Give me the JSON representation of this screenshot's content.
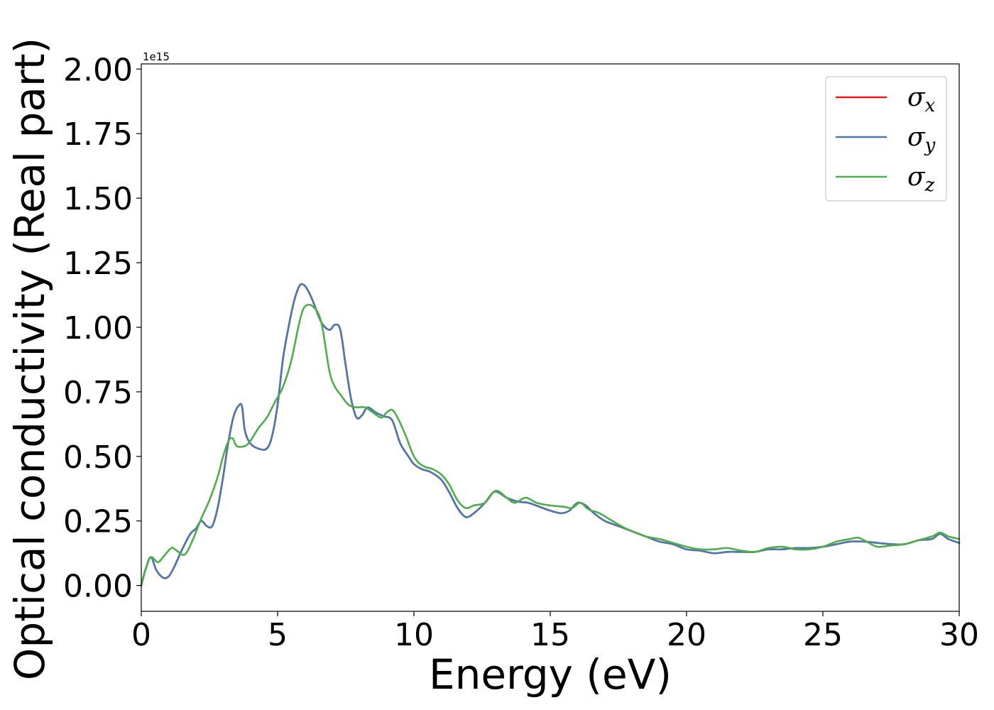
{
  "chart_data": {
    "type": "line",
    "xlabel": "Energy (eV)",
    "ylabel": "Optical conductivity (Real part)",
    "y_offset_label": "1e15",
    "xlim": [
      0,
      30
    ],
    "ylim": [
      -0.1,
      2.02
    ],
    "xticks": [
      0,
      5,
      10,
      15,
      20,
      25,
      30
    ],
    "xtick_labels": [
      "0",
      "5",
      "10",
      "15",
      "20",
      "25",
      "30"
    ],
    "yticks": [
      0.0,
      0.25,
      0.5,
      0.75,
      1.0,
      1.25,
      1.5,
      1.75,
      2.0
    ],
    "ytick_labels": [
      "0.00",
      "0.25",
      "0.50",
      "0.75",
      "1.00",
      "1.25",
      "1.50",
      "1.75",
      "2.00"
    ],
    "grid": false,
    "legend_position": "top-right",
    "series": [
      {
        "name": "σx",
        "legend_base": "σ",
        "legend_sub": "x",
        "color": "#e41a1c",
        "x": [
          0,
          0.15,
          0.35,
          0.55,
          0.8,
          1.0,
          1.2,
          1.5,
          1.8,
          2.0,
          2.2,
          2.4,
          2.6,
          2.8,
          3.0,
          3.2,
          3.4,
          3.6,
          3.7,
          3.8,
          4.0,
          4.3,
          4.6,
          4.8,
          5.0,
          5.2,
          5.4,
          5.6,
          5.8,
          5.95,
          6.1,
          6.3,
          6.6,
          6.9,
          7.1,
          7.3,
          7.5,
          7.7,
          7.9,
          8.1,
          8.3,
          8.6,
          8.9,
          9.2,
          9.5,
          9.8,
          10.0,
          10.3,
          10.6,
          11.0,
          11.3,
          11.6,
          11.9,
          12.2,
          12.6,
          12.9,
          13.1,
          13.4,
          13.8,
          14.2,
          14.6,
          15.0,
          15.4,
          15.7,
          16.0,
          16.3,
          16.6,
          17.0,
          17.5,
          18.0,
          18.5,
          19.0,
          19.5,
          20.0,
          20.5,
          21.0,
          21.5,
          22.0,
          22.5,
          23.0,
          23.5,
          24.0,
          24.5,
          25.0,
          25.5,
          26.0,
          26.5,
          27.0,
          27.5,
          28.0,
          28.5,
          29.0,
          29.3,
          29.6,
          30.0
        ],
        "y": [
          0.0,
          0.06,
          0.11,
          0.06,
          0.03,
          0.035,
          0.07,
          0.14,
          0.2,
          0.22,
          0.25,
          0.23,
          0.23,
          0.3,
          0.42,
          0.56,
          0.66,
          0.7,
          0.69,
          0.6,
          0.55,
          0.53,
          0.53,
          0.58,
          0.7,
          0.88,
          1.0,
          1.1,
          1.16,
          1.165,
          1.145,
          1.1,
          1.02,
          0.99,
          1.01,
          0.99,
          0.85,
          0.72,
          0.65,
          0.66,
          0.69,
          0.67,
          0.655,
          0.64,
          0.55,
          0.5,
          0.47,
          0.45,
          0.44,
          0.41,
          0.36,
          0.3,
          0.265,
          0.28,
          0.32,
          0.36,
          0.36,
          0.34,
          0.325,
          0.32,
          0.305,
          0.29,
          0.28,
          0.29,
          0.32,
          0.31,
          0.28,
          0.25,
          0.23,
          0.21,
          0.19,
          0.17,
          0.16,
          0.14,
          0.135,
          0.125,
          0.13,
          0.13,
          0.13,
          0.14,
          0.14,
          0.145,
          0.145,
          0.15,
          0.16,
          0.17,
          0.17,
          0.165,
          0.16,
          0.16,
          0.175,
          0.18,
          0.2,
          0.18,
          0.165
        ]
      },
      {
        "name": "σy",
        "legend_base": "σ",
        "legend_sub": "y",
        "color": "#4a78b0",
        "x": [
          0,
          0.15,
          0.35,
          0.55,
          0.8,
          1.0,
          1.2,
          1.5,
          1.8,
          2.0,
          2.2,
          2.4,
          2.6,
          2.8,
          3.0,
          3.2,
          3.4,
          3.6,
          3.7,
          3.8,
          4.0,
          4.3,
          4.6,
          4.8,
          5.0,
          5.2,
          5.4,
          5.6,
          5.8,
          5.95,
          6.1,
          6.3,
          6.6,
          6.9,
          7.1,
          7.3,
          7.5,
          7.7,
          7.9,
          8.1,
          8.3,
          8.6,
          8.9,
          9.2,
          9.5,
          9.8,
          10.0,
          10.3,
          10.6,
          11.0,
          11.3,
          11.6,
          11.9,
          12.2,
          12.6,
          12.9,
          13.1,
          13.4,
          13.8,
          14.2,
          14.6,
          15.0,
          15.4,
          15.7,
          16.0,
          16.3,
          16.6,
          17.0,
          17.5,
          18.0,
          18.5,
          19.0,
          19.5,
          20.0,
          20.5,
          21.0,
          21.5,
          22.0,
          22.5,
          23.0,
          23.5,
          24.0,
          24.5,
          25.0,
          25.5,
          26.0,
          26.5,
          27.0,
          27.5,
          28.0,
          28.5,
          29.0,
          29.3,
          29.6,
          30.0
        ],
        "y": [
          0.0,
          0.06,
          0.11,
          0.06,
          0.03,
          0.035,
          0.07,
          0.14,
          0.2,
          0.22,
          0.25,
          0.23,
          0.23,
          0.3,
          0.42,
          0.56,
          0.66,
          0.7,
          0.69,
          0.6,
          0.55,
          0.53,
          0.53,
          0.58,
          0.7,
          0.88,
          1.0,
          1.1,
          1.16,
          1.165,
          1.145,
          1.1,
          1.02,
          0.99,
          1.01,
          0.99,
          0.85,
          0.72,
          0.65,
          0.66,
          0.69,
          0.67,
          0.655,
          0.64,
          0.55,
          0.5,
          0.47,
          0.45,
          0.44,
          0.41,
          0.36,
          0.3,
          0.265,
          0.28,
          0.32,
          0.36,
          0.36,
          0.34,
          0.325,
          0.32,
          0.305,
          0.29,
          0.28,
          0.29,
          0.32,
          0.31,
          0.28,
          0.25,
          0.23,
          0.21,
          0.19,
          0.17,
          0.16,
          0.14,
          0.135,
          0.125,
          0.13,
          0.13,
          0.13,
          0.14,
          0.14,
          0.145,
          0.145,
          0.15,
          0.16,
          0.17,
          0.17,
          0.165,
          0.16,
          0.16,
          0.175,
          0.18,
          0.2,
          0.18,
          0.165
        ]
      },
      {
        "name": "σz",
        "legend_base": "σ",
        "legend_sub": "z",
        "color": "#4daf4a",
        "x": [
          0,
          0.15,
          0.35,
          0.6,
          0.8,
          1.1,
          1.3,
          1.6,
          1.9,
          2.2,
          2.5,
          2.8,
          3.0,
          3.2,
          3.35,
          3.5,
          3.8,
          4.0,
          4.3,
          4.6,
          4.9,
          5.2,
          5.5,
          5.8,
          6.0,
          6.3,
          6.6,
          6.9,
          7.1,
          7.3,
          7.6,
          7.9,
          8.2,
          8.5,
          8.8,
          9.0,
          9.2,
          9.4,
          9.7,
          10.0,
          10.3,
          10.7,
          11.0,
          11.3,
          11.6,
          11.9,
          12.2,
          12.6,
          12.9,
          13.1,
          13.4,
          13.7,
          14.1,
          14.5,
          15.0,
          15.5,
          15.8,
          16.1,
          16.4,
          16.8,
          17.2,
          17.6,
          18.0,
          18.5,
          19.0,
          19.5,
          20.0,
          20.5,
          21.0,
          21.5,
          22.0,
          22.5,
          23.0,
          23.5,
          24.0,
          24.5,
          25.0,
          25.5,
          26.0,
          26.3,
          26.6,
          27.0,
          27.5,
          28.0,
          28.5,
          29.0,
          29.3,
          29.6,
          30.0
        ],
        "y": [
          0.0,
          0.06,
          0.11,
          0.09,
          0.11,
          0.145,
          0.135,
          0.12,
          0.18,
          0.26,
          0.33,
          0.42,
          0.5,
          0.56,
          0.57,
          0.54,
          0.54,
          0.56,
          0.61,
          0.65,
          0.71,
          0.77,
          0.87,
          1.02,
          1.08,
          1.08,
          1.02,
          0.83,
          0.77,
          0.74,
          0.7,
          0.69,
          0.69,
          0.67,
          0.65,
          0.67,
          0.68,
          0.65,
          0.58,
          0.5,
          0.465,
          0.45,
          0.43,
          0.39,
          0.33,
          0.3,
          0.31,
          0.32,
          0.36,
          0.365,
          0.34,
          0.32,
          0.34,
          0.32,
          0.31,
          0.305,
          0.3,
          0.32,
          0.295,
          0.28,
          0.255,
          0.23,
          0.21,
          0.19,
          0.18,
          0.165,
          0.15,
          0.14,
          0.14,
          0.145,
          0.135,
          0.13,
          0.145,
          0.15,
          0.14,
          0.14,
          0.15,
          0.17,
          0.18,
          0.185,
          0.17,
          0.15,
          0.155,
          0.16,
          0.175,
          0.19,
          0.205,
          0.19,
          0.18
        ]
      }
    ]
  }
}
